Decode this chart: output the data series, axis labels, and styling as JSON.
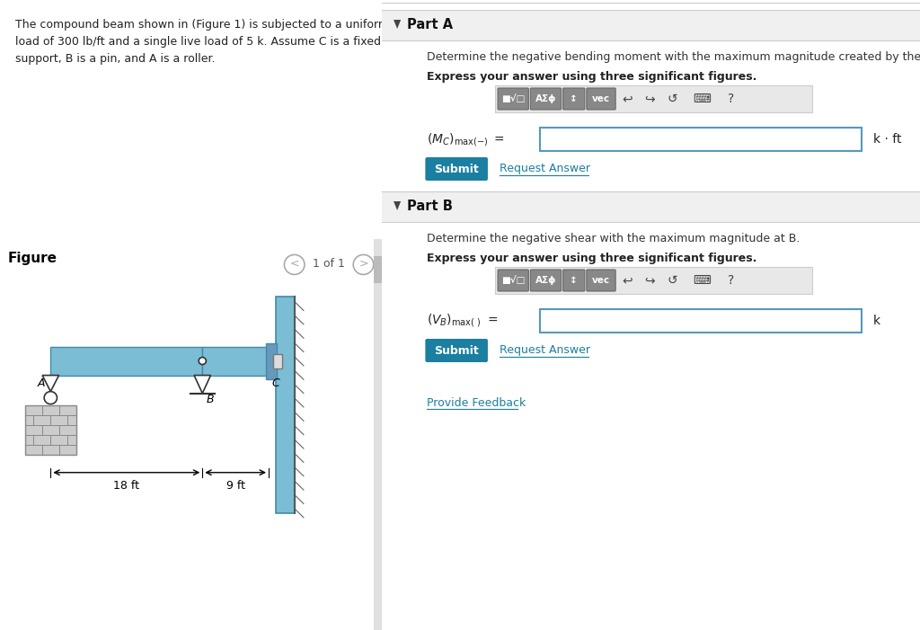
{
  "bg_color": "#ffffff",
  "left_panel_bg": "#ddeeff",
  "part_a_header": "Part A",
  "part_a_desc": "Determine the negative bending moment with the maximum magnitude created by these loads at C.",
  "part_a_bold": "Express your answer using three significant figures.",
  "part_a_unit": "k · ft",
  "part_b_header": "Part B",
  "part_b_desc": "Determine the negative shear with the maximum magnitude at B.",
  "part_b_bold": "Express your answer using three significant figures.",
  "part_b_unit": "k",
  "submit_bg": "#1a7fa0",
  "submit_text_color": "#ffffff",
  "link_color": "#1a7fa0",
  "input_border": "#5599bb",
  "beam_color": "#7bbdd4",
  "wall_color": "#7bbdd4",
  "dist_AB": "18 ft",
  "dist_BC": "9 ft"
}
